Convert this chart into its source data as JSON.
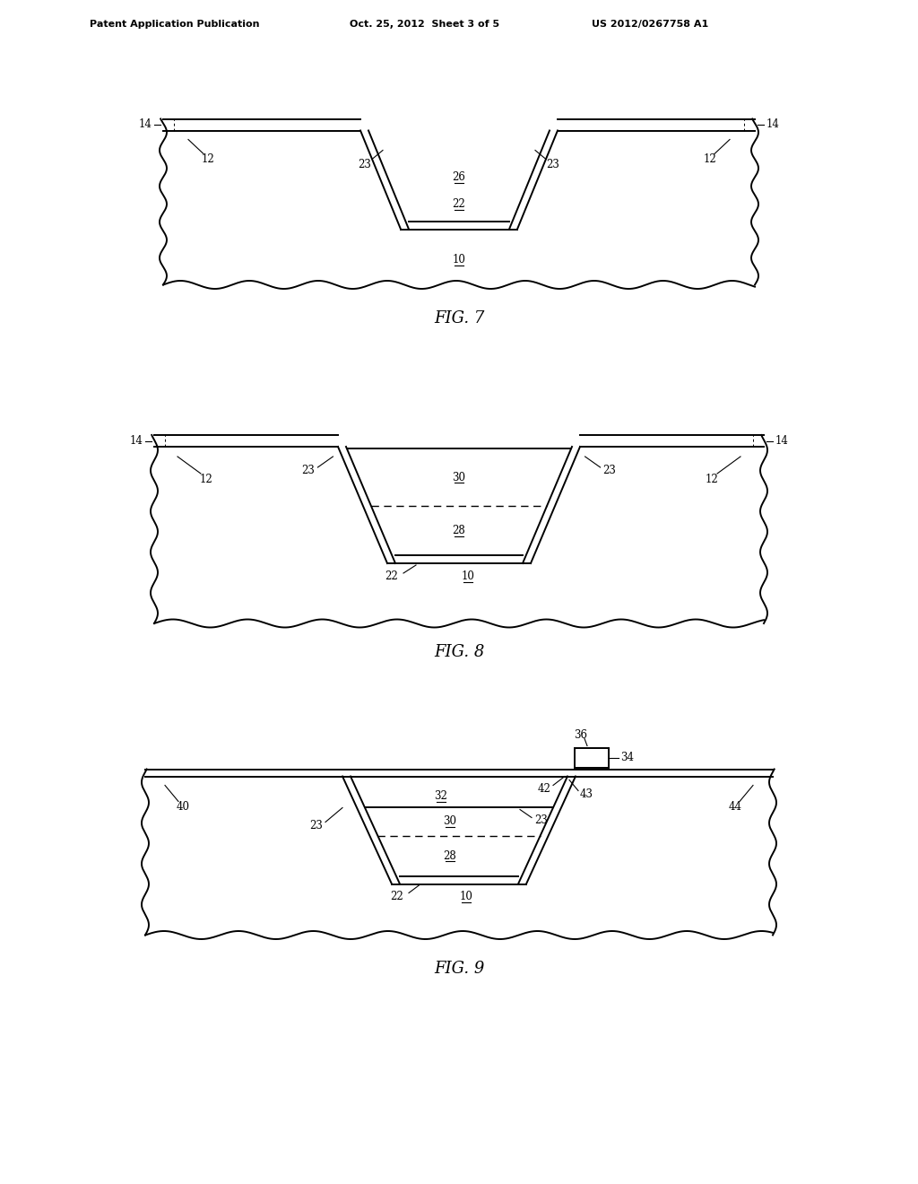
{
  "bg_color": "#ffffff",
  "line_color": "#000000",
  "header_left": "Patent Application Publication",
  "header_mid": "Oct. 25, 2012  Sheet 3 of 5",
  "header_right": "US 2012/0267758 A1",
  "fig7_label": "FIG. 7",
  "fig8_label": "FIG. 8",
  "fig9_label": "FIG. 9"
}
